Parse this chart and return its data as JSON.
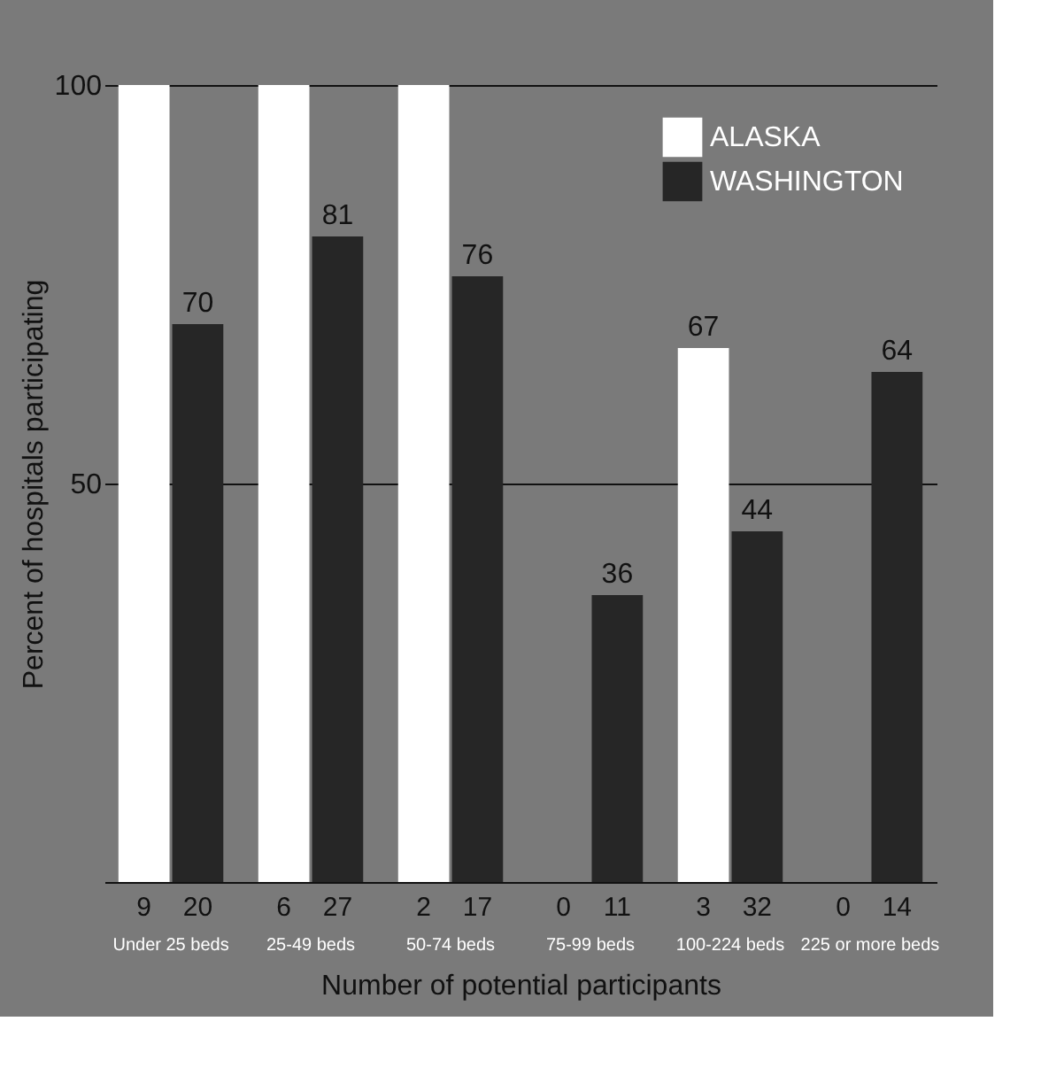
{
  "chart_data": {
    "type": "bar",
    "xlabel": "Number of potential participants",
    "ylabel": "Percent of hospitals participating",
    "categories": [
      "Under 25 beds",
      "25-49 beds",
      "50-74 beds",
      "75-99 beds",
      "100-224 beds",
      "225 or more beds"
    ],
    "series": [
      {
        "name": "ALASKA",
        "color": "#ffffff",
        "values": [
          100,
          100,
          100,
          0,
          67,
          0
        ],
        "value_labels": [
          null,
          null,
          null,
          null,
          "67",
          null
        ]
      },
      {
        "name": "WASHINGTON",
        "color": "#262626",
        "values": [
          70,
          81,
          76,
          36,
          44,
          64
        ],
        "value_labels": [
          "70",
          "81",
          "76",
          "36",
          "44",
          "64"
        ]
      }
    ],
    "ylim": [
      0,
      100
    ],
    "yticks": [
      {
        "value": 0,
        "label": null
      },
      50,
      100
    ],
    "grid": "y",
    "legend": "top right",
    "annotations": [
      {
        "text": "9",
        "x": "Under 25 beds",
        "y": 0
      },
      {
        "text": "20",
        "x": "Under 25 beds",
        "y": 0
      },
      {
        "text": "6",
        "x": "25-49 beds",
        "y": 0
      },
      {
        "text": "27",
        "x": "25-49 beds",
        "y": 0
      },
      {
        "text": "2",
        "x": "50-74 beds",
        "y": 0
      },
      {
        "text": "17",
        "x": "50-74 beds",
        "y": 0
      },
      {
        "text": "0",
        "x": "75-99 beds",
        "y": 0
      },
      {
        "text": "11",
        "x": "75-99 beds",
        "y": 0
      },
      {
        "text": "3",
        "x": "100-224 beds",
        "y": 0
      },
      {
        "text": "32",
        "x": "100-224 beds",
        "y": 0
      },
      {
        "text": "0",
        "x": "225 or more beds",
        "y": 0
      },
      {
        "text": "14",
        "x": "225 or more beds",
        "y": 0
      }
    ]
  }
}
